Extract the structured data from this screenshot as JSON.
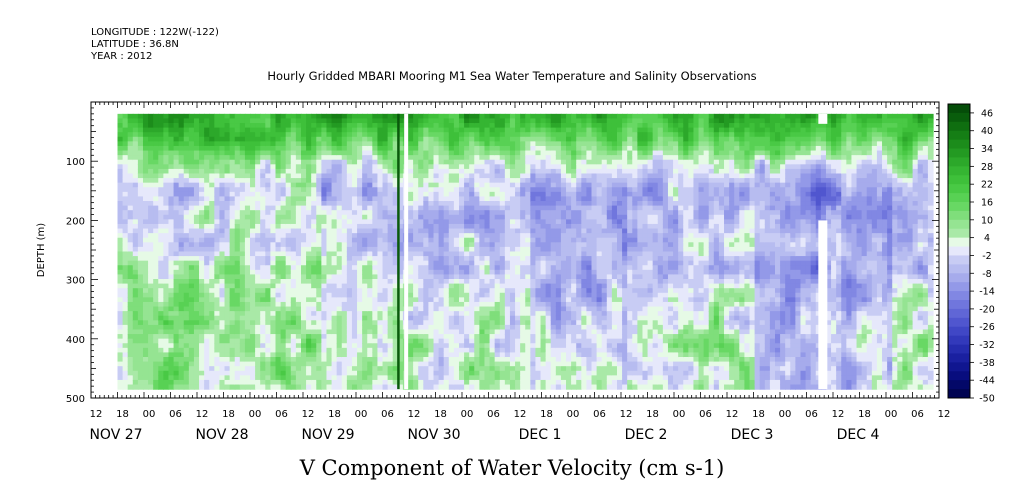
{
  "meta": {
    "longitude": "LONGITUDE : 122W(-122)",
    "latitude": "LATITUDE : 36.8N",
    "year": "YEAR : 2012"
  },
  "chart_data": {
    "type": "heatmap",
    "title": "Hourly Gridded MBARI Mooring M1 Sea Water Temperature and Salinity Observations",
    "variable_label": "V Component of Water Velocity (cm s-1)",
    "ylabel": "DEPTH (m)",
    "ylim": [
      500,
      0
    ],
    "y_ticks": [
      "100",
      "200",
      "300",
      "400",
      "500"
    ],
    "x_hour_ticks": [
      "12",
      "18",
      "00",
      "06",
      "12",
      "18",
      "00",
      "06",
      "12",
      "18",
      "00",
      "06",
      "12",
      "18",
      "00",
      "06",
      "12",
      "18",
      "00",
      "06",
      "12",
      "18",
      "00",
      "06",
      "12",
      "18",
      "00",
      "06",
      "12",
      "18",
      "00",
      "06",
      "12"
    ],
    "x_date_labels": [
      "NOV 27",
      "NOV 28",
      "NOV 29",
      "NOV 30",
      "DEC  1",
      "DEC  2",
      "DEC  3",
      "DEC  4"
    ],
    "x_start": "2012-11-27 12:00",
    "x_end": "2012-12-04 12:00",
    "data_start": "2012-11-27 18:00",
    "data_end": "2012-12-04 12:00",
    "colorbar_labels": [
      "46",
      "40",
      "34",
      "28",
      "22",
      "16",
      "10",
      "4",
      "-2",
      "-8",
      "-14",
      "-20",
      "-26",
      "-32",
      "-38",
      "-44",
      "-50"
    ],
    "colorbar_min": -50,
    "colorbar_max": 49,
    "colorbar_step": 3,
    "colors_positive": [
      "#e6fae6",
      "#a9e9a7",
      "#95e492",
      "#7fde7b",
      "#68d864",
      "#58d154",
      "#49c945",
      "#3ec03a",
      "#35b532",
      "#2ca82a",
      "#239a22",
      "#1c8c1b",
      "#157e15",
      "#0f6e10",
      "#095d0c",
      "#054d09"
    ],
    "colors_negative": [
      "#e6e8fb",
      "#c8ccf4",
      "#b7bcf0",
      "#a6abec",
      "#9399e8",
      "#8187e3",
      "#7076dd",
      "#6066d6",
      "#5056cf",
      "#4047c6",
      "#3239bb",
      "#252cae",
      "#1a20a0",
      "#101690",
      "#080d7e",
      "#030868",
      "#000452"
    ],
    "missing_data": "white gaps near Nov 28 22:00 and Dec 2 22:00",
    "approx_profile": {
      "note": "dominant value bands estimated from image by depth",
      "depth_m": [
        20,
        60,
        100,
        150,
        200,
        300,
        400,
        480
      ],
      "typical_v": [
        28,
        18,
        4,
        -8,
        -6,
        -2,
        4,
        2
      ]
    }
  }
}
